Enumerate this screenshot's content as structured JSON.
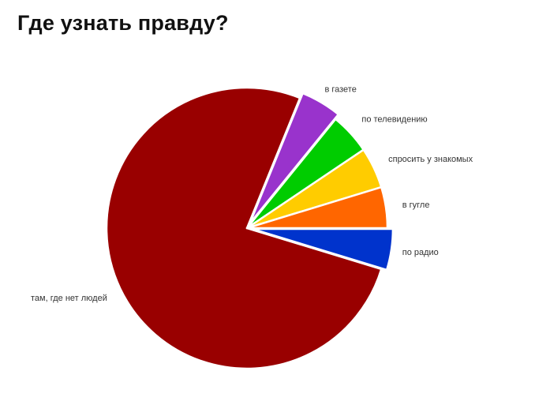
{
  "chart_data": {
    "type": "pie",
    "title": "Где узнать правду?",
    "slices": [
      {
        "label": "по радио",
        "value": 4.5,
        "color": "#0033cc"
      },
      {
        "label": "там, где нет людей",
        "value": 73,
        "color": "#990000"
      },
      {
        "label": "в газете",
        "value": 4.5,
        "color": "#9933cc"
      },
      {
        "label": "по телевидению",
        "value": 4.5,
        "color": "#00cc00"
      },
      {
        "label": "спросить у знакомых",
        "value": 4.5,
        "color": "#ffcc00"
      },
      {
        "label": "в гугле",
        "value": 4.5,
        "color": "#ff6600"
      }
    ],
    "exploded_slices": [
      "по радио",
      "в газете"
    ],
    "legend": "none",
    "start_direction": "east",
    "direction": "clockwise"
  }
}
